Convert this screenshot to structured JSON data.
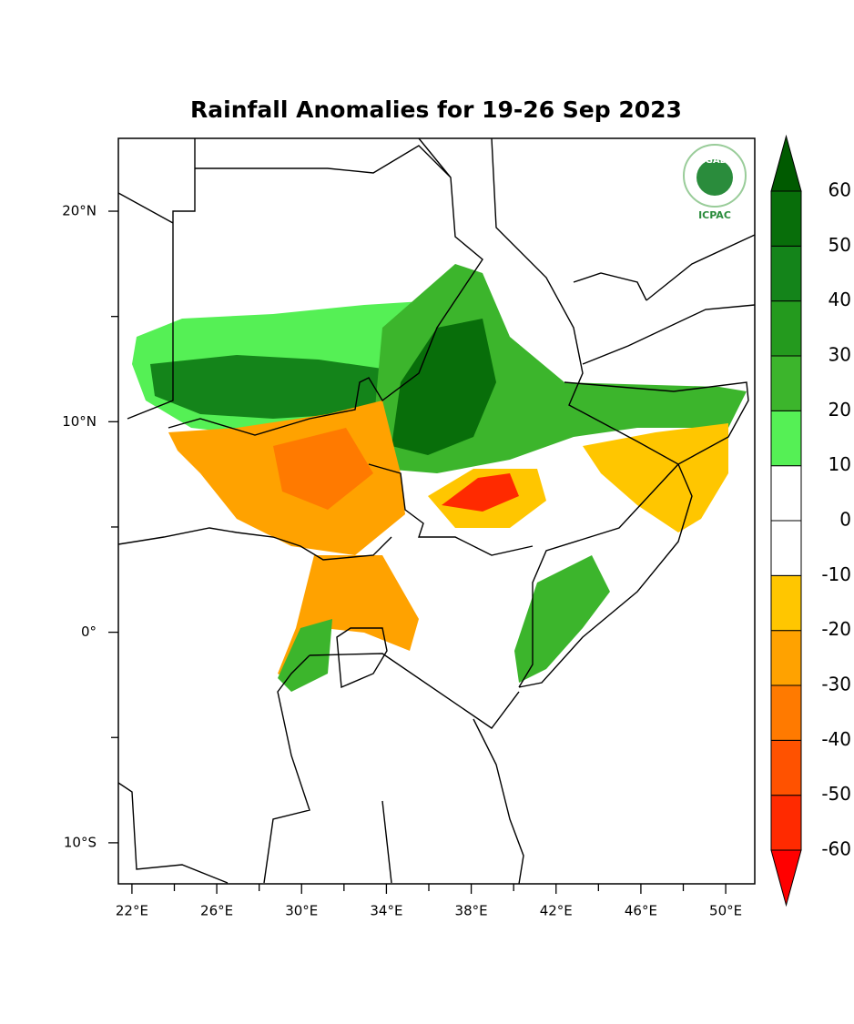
{
  "map": {
    "title": "Rainfall Anomalies for 19-26 Sep 2023",
    "xlim": [
      21.36,
      51.37
    ],
    "ylim": [
      -11.95,
      23.46
    ],
    "xticks": [
      {
        "value": 22,
        "label": "22°E"
      },
      {
        "value": 26,
        "label": "26°E"
      },
      {
        "value": 30,
        "label": "30°E"
      },
      {
        "value": 34,
        "label": "34°E"
      },
      {
        "value": 38,
        "label": "38°E"
      },
      {
        "value": 42,
        "label": "42°E"
      },
      {
        "value": 46,
        "label": "46°E"
      },
      {
        "value": 50,
        "label": "50°E"
      }
    ],
    "xminorticks": [
      24,
      28,
      32,
      36,
      40,
      44,
      48
    ],
    "yticks": [
      {
        "value": 20,
        "label": "20°N"
      },
      {
        "value": 10,
        "label": "10°N"
      },
      {
        "value": 0,
        "label": "0°"
      },
      {
        "value": -10,
        "label": "10°S"
      }
    ],
    "yminorticks": [
      15,
      5,
      -5
    ]
  },
  "colorbar": {
    "levels": [
      -60,
      -50,
      -40,
      -30,
      -20,
      -10,
      0,
      10,
      20,
      30,
      40,
      50,
      60
    ],
    "colors": [
      "#ff0000",
      "#ff2a00",
      "#ff5200",
      "#ff7a00",
      "#ffa200",
      "#ffc600",
      "#ffffff",
      "#ffffff",
      "#55f055",
      "#3cb52c",
      "#249a1e",
      "#14841a",
      "#086e0a",
      "#005a00"
    ]
  },
  "logo": {
    "top": "IGAD",
    "bottom": "ICPAC"
  }
}
